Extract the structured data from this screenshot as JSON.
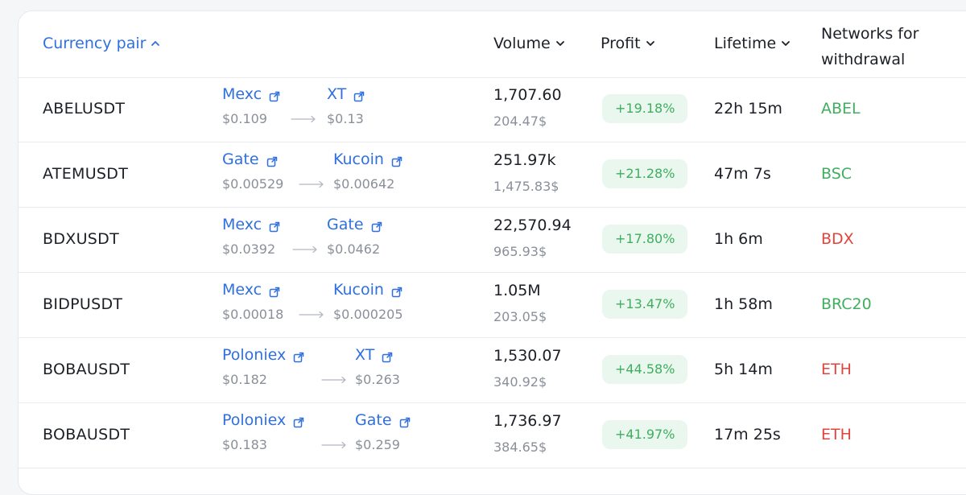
{
  "header": {
    "currency_pair": "Currency pair",
    "volume": "Volume",
    "profit": "Profit",
    "lifetime": "Lifetime",
    "networks": "Networks for withdrawal"
  },
  "colors": {
    "link": "#2f6fde",
    "profit_text": "#3fae5f",
    "profit_bg": "#e9f7ee",
    "network_green": "#3fae5f",
    "network_red": "#e0443c"
  },
  "icons": {
    "sort_up": "chevron-up-icon",
    "sort_down": "chevron-down-icon",
    "external": "external-link-icon",
    "transfer": "arrow-right-icon"
  },
  "rows": [
    {
      "pair": "ABELUSDT",
      "from_exchange": "Mexc",
      "from_price": "$0.109",
      "to_exchange": "XT",
      "to_price": "$0.13",
      "volume": "1,707.60",
      "volume_usd": "204.47$",
      "profit": "+19.18%",
      "lifetime": "22h 15m",
      "network": "ABEL",
      "network_color": "#3fae5f"
    },
    {
      "pair": "ATEMUSDT",
      "from_exchange": "Gate",
      "from_price": "$0.00529",
      "to_exchange": "Kucoin",
      "to_price": "$0.00642",
      "volume": "251.97k",
      "volume_usd": "1,475.83$",
      "profit": "+21.28%",
      "lifetime": "47m 7s",
      "network": "BSC",
      "network_color": "#3fae5f"
    },
    {
      "pair": "BDXUSDT",
      "from_exchange": "Mexc",
      "from_price": "$0.0392",
      "to_exchange": "Gate",
      "to_price": "$0.0462",
      "volume": "22,570.94",
      "volume_usd": "965.93$",
      "profit": "+17.80%",
      "lifetime": "1h 6m",
      "network": "BDX",
      "network_color": "#e0443c"
    },
    {
      "pair": "BIDPUSDT",
      "from_exchange": "Mexc",
      "from_price": "$0.00018",
      "to_exchange": "Kucoin",
      "to_price": "$0.000205",
      "volume": "1.05M",
      "volume_usd": "203.05$",
      "profit": "+13.47%",
      "lifetime": "1h 58m",
      "network": "BRC20",
      "network_color": "#3fae5f"
    },
    {
      "pair": "BOBAUSDT",
      "from_exchange": "Poloniex",
      "from_price": "$0.182",
      "to_exchange": "XT",
      "to_price": "$0.263",
      "volume": "1,530.07",
      "volume_usd": "340.92$",
      "profit": "+44.58%",
      "lifetime": "5h 14m",
      "network": "ETH",
      "network_color": "#e0443c"
    },
    {
      "pair": "BOBAUSDT",
      "from_exchange": "Poloniex",
      "from_price": "$0.183",
      "to_exchange": "Gate",
      "to_price": "$0.259",
      "volume": "1,736.97",
      "volume_usd": "384.65$",
      "profit": "+41.97%",
      "lifetime": "17m 25s",
      "network": "ETH",
      "network_color": "#e0443c"
    }
  ]
}
